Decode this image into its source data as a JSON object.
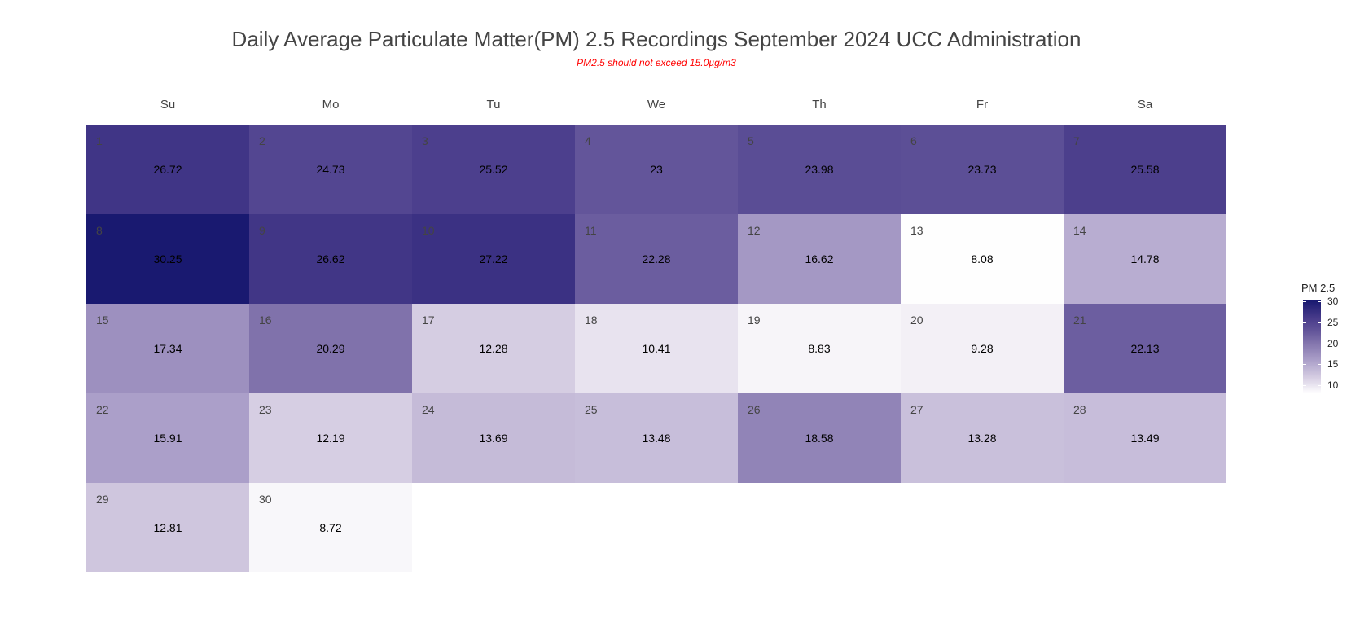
{
  "chart_data": {
    "type": "heatmap",
    "title": "Daily Average Particulate Matter(PM) 2.5 Recordings September 2024 UCC Administration",
    "subtitle": "PM2.5 should not exceed 15.0µg/m3",
    "weekdays": [
      "Su",
      "Mo",
      "Tu",
      "We",
      "Th",
      "Fr",
      "Sa"
    ],
    "first_weekday_index": 0,
    "days": [
      1,
      2,
      3,
      4,
      5,
      6,
      7,
      8,
      9,
      10,
      11,
      12,
      13,
      14,
      15,
      16,
      17,
      18,
      19,
      20,
      21,
      22,
      23,
      24,
      25,
      26,
      27,
      28,
      29,
      30
    ],
    "values": [
      26.72,
      24.73,
      25.52,
      23,
      23.98,
      23.73,
      25.58,
      30.25,
      26.62,
      27.22,
      22.28,
      16.62,
      8.08,
      14.78,
      17.34,
      20.29,
      12.28,
      10.41,
      8.83,
      9.28,
      22.13,
      15.91,
      12.19,
      13.69,
      13.48,
      18.58,
      13.28,
      13.49,
      12.81,
      8.72
    ],
    "legend": {
      "title": "PM 2.5",
      "ticks": [
        10,
        15,
        20,
        25,
        30
      ],
      "range": [
        8.08,
        30.25
      ],
      "low_color": "#ffffff",
      "high_color": "#191970",
      "placement": "right"
    }
  }
}
